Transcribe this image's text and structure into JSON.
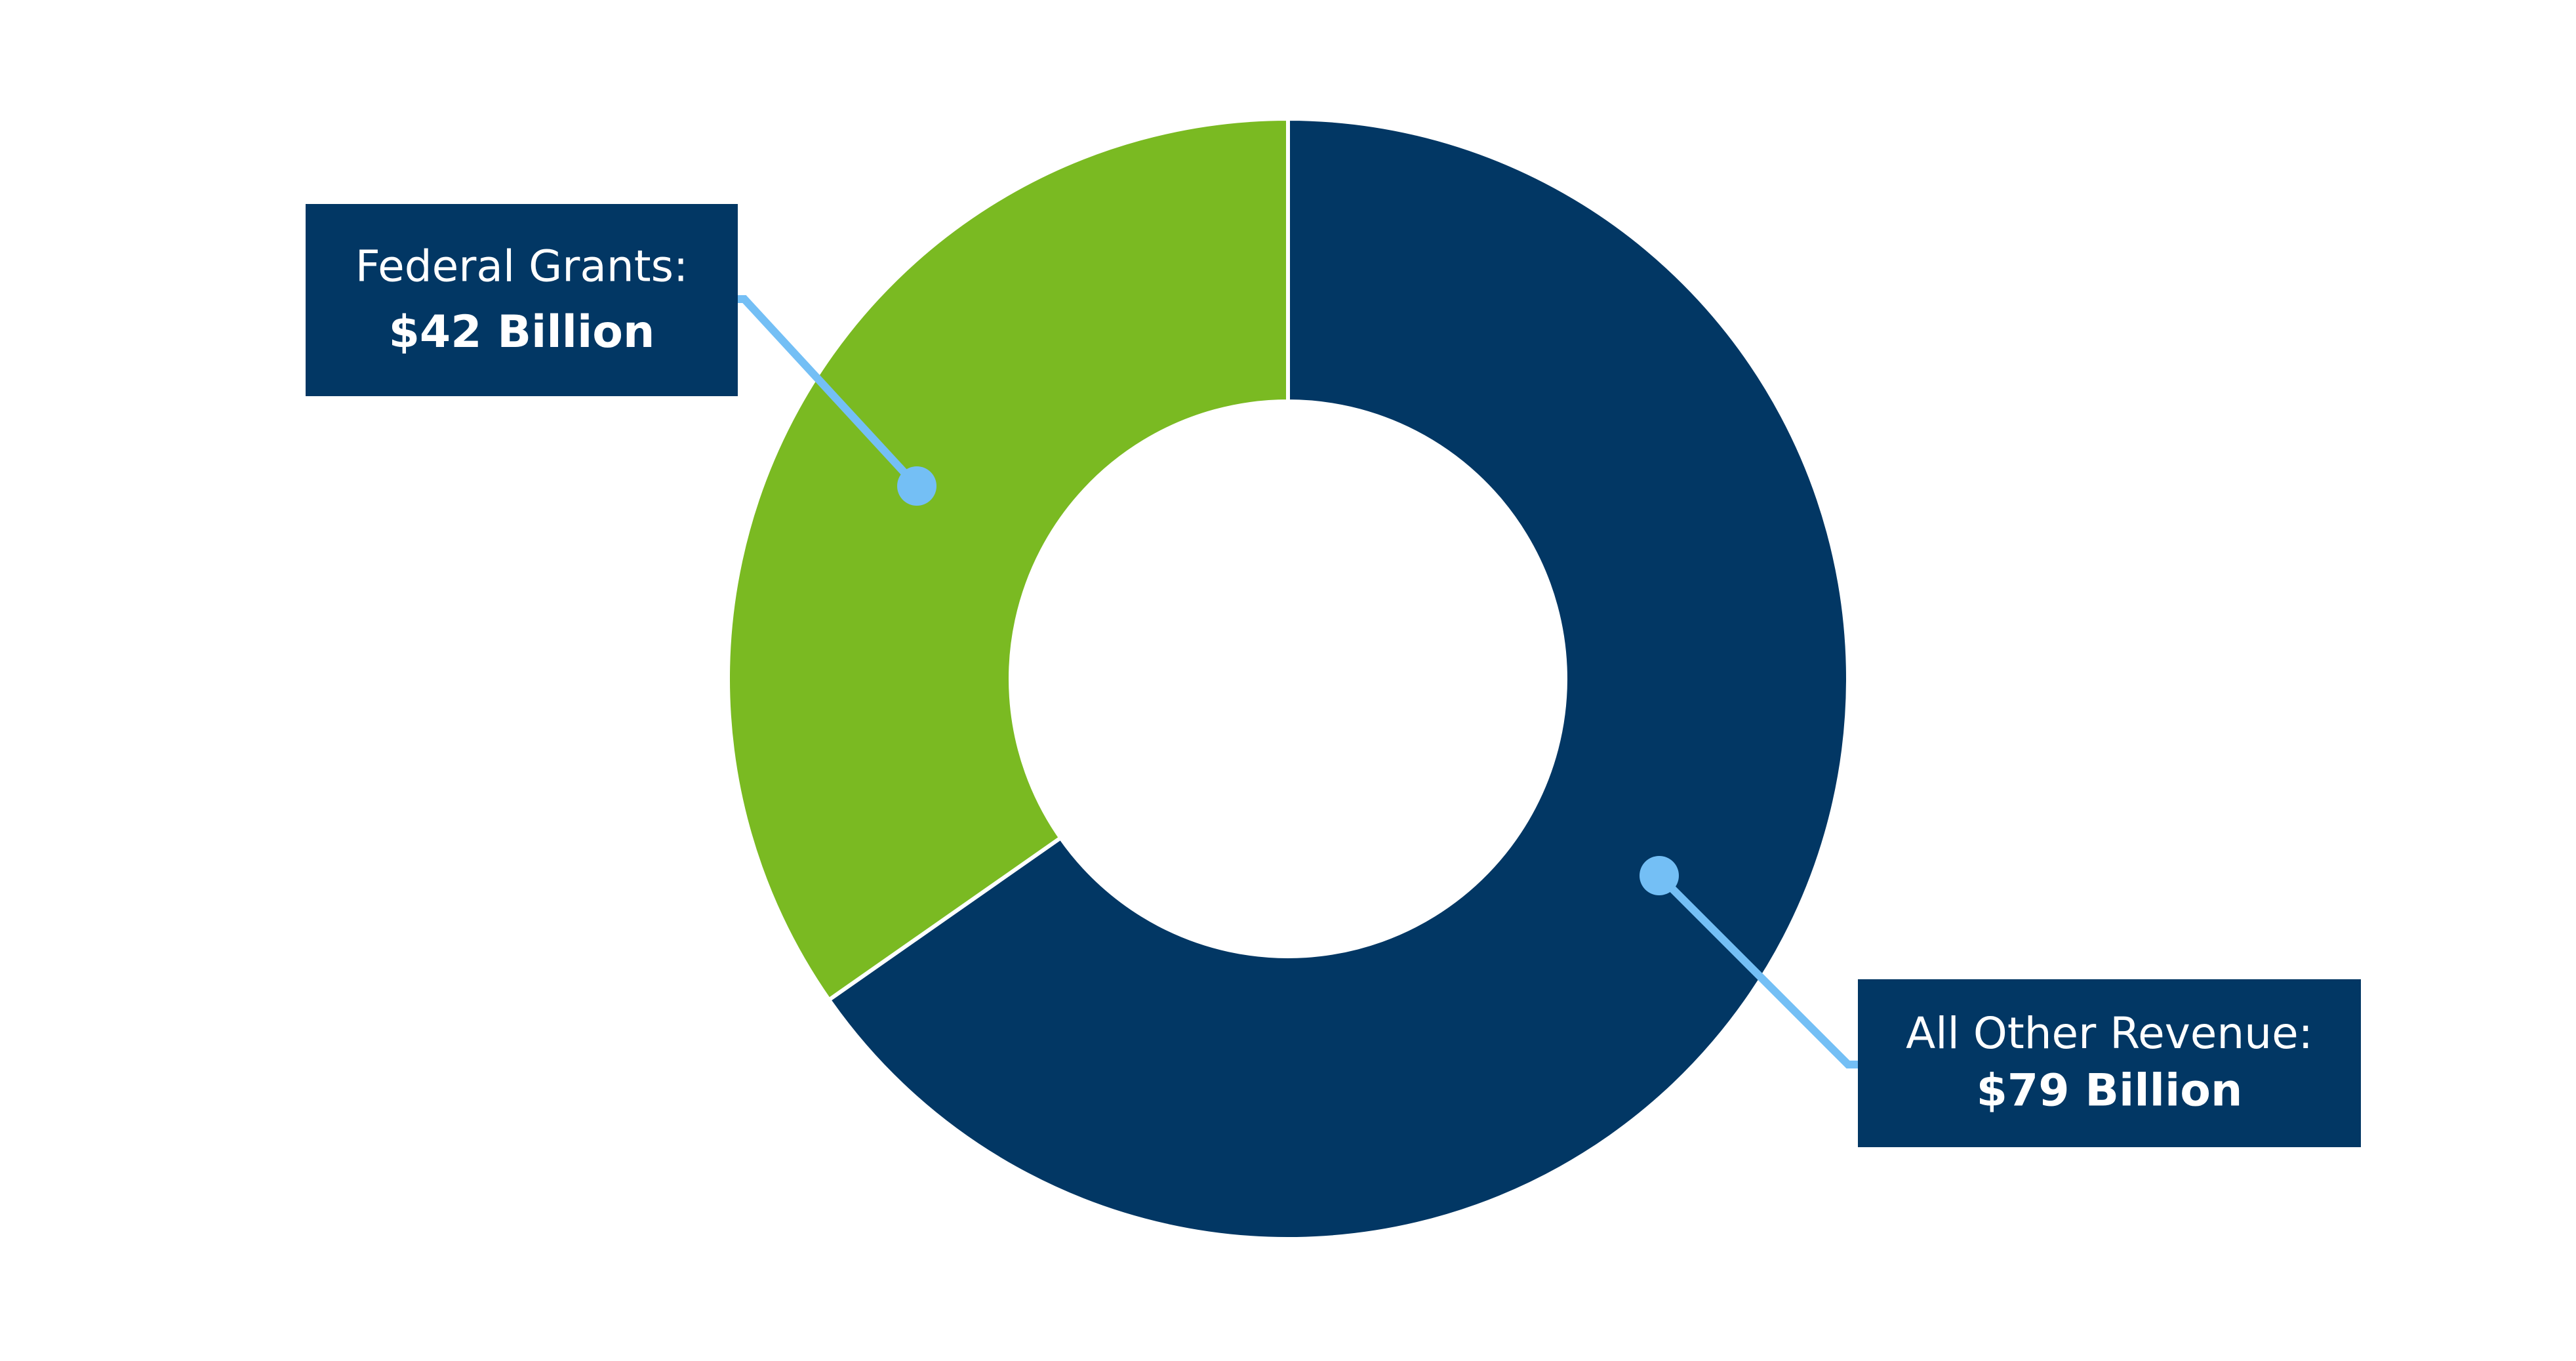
{
  "chart_data": {
    "type": "donut",
    "categories": [
      "All Other Revenue:",
      "Federal Grants:"
    ],
    "values": [
      79,
      42
    ],
    "value_labels": [
      "$79 Billion",
      "$42 Billion"
    ],
    "colors": [
      "#023764",
      "#7aba22"
    ]
  }
}
